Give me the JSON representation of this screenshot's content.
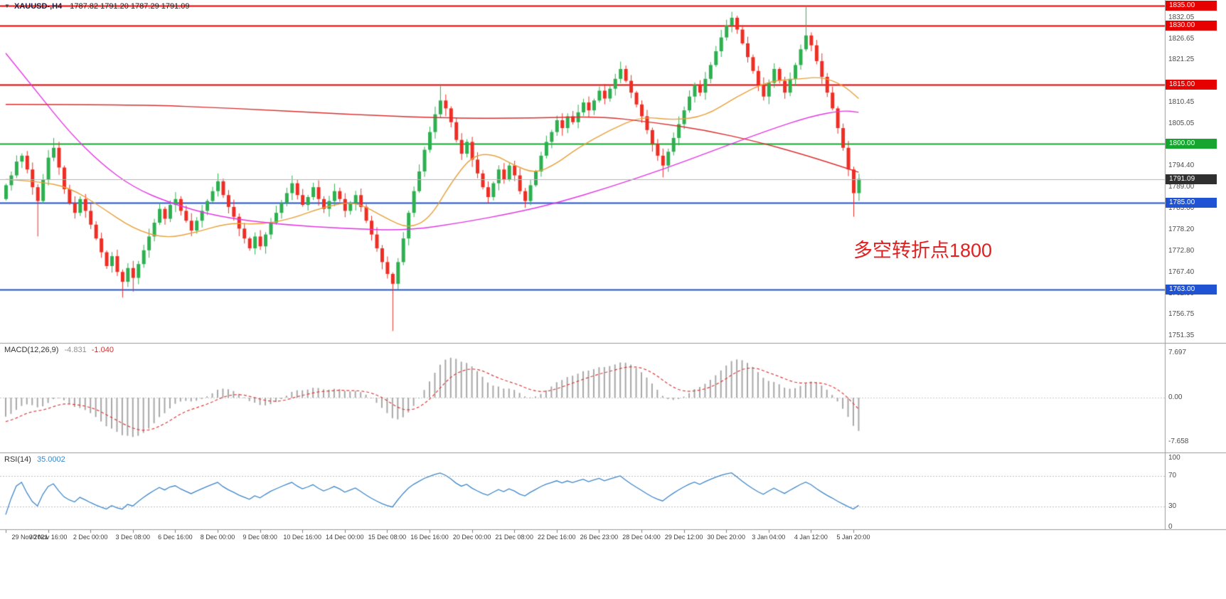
{
  "header": {
    "symbol_period": "XAUUSD-,H4",
    "ohlc": "1787.82 1791.20 1787.29 1791.09"
  },
  "annotation": {
    "text": "多空转折点1800",
    "color": "#e32020"
  },
  "colors": {
    "background": "#ffffff",
    "candle_up": "#2eb050",
    "candle_down": "#ee2e24",
    "separator": "#9a9a9a",
    "axis_text": "#4d4d4d"
  },
  "chart_data": {
    "type": "candlestick",
    "symbol": "XAUUSD-",
    "timeframe": "H4",
    "y_range": [
      1749.5,
      1836.5
    ],
    "bars_visible": 162,
    "candles": {
      "first_open": 1786.0,
      "closes": [
        1789.5,
        1792.0,
        1795.5,
        1797.0,
        1793.5,
        1789.0,
        1785.5,
        1791.0,
        1796.5,
        1799.0,
        1794.0,
        1788.5,
        1785.0,
        1782.5,
        1786.0,
        1783.0,
        1779.5,
        1776.0,
        1772.5,
        1769.0,
        1771.5,
        1767.5,
        1765.0,
        1768.5,
        1766.0,
        1769.5,
        1773.0,
        1776.5,
        1780.0,
        1783.5,
        1781.0,
        1784.5,
        1786.0,
        1783.0,
        1780.5,
        1778.0,
        1780.5,
        1783.0,
        1785.5,
        1788.0,
        1790.5,
        1787.0,
        1784.0,
        1781.5,
        1778.5,
        1776.0,
        1773.5,
        1776.5,
        1774.0,
        1777.0,
        1780.0,
        1782.5,
        1785.0,
        1787.5,
        1790.0,
        1787.0,
        1784.5,
        1786.5,
        1789.0,
        1786.0,
        1783.5,
        1785.5,
        1788.0,
        1786.0,
        1783.0,
        1785.0,
        1787.0,
        1784.0,
        1780.5,
        1777.0,
        1773.5,
        1770.0,
        1767.0,
        1764.5,
        1770.0,
        1776.0,
        1782.5,
        1788.0,
        1793.0,
        1798.5,
        1803.0,
        1807.5,
        1811.0,
        1809.0,
        1805.5,
        1801.0,
        1797.5,
        1800.5,
        1796.0,
        1792.5,
        1789.0,
        1786.5,
        1790.0,
        1793.5,
        1791.0,
        1794.5,
        1792.0,
        1788.0,
        1785.5,
        1789.5,
        1793.0,
        1797.0,
        1800.5,
        1803.0,
        1806.0,
        1804.0,
        1807.0,
        1805.5,
        1808.0,
        1810.5,
        1808.5,
        1811.0,
        1813.5,
        1811.5,
        1814.0,
        1816.5,
        1819.0,
        1816.0,
        1813.0,
        1810.0,
        1807.0,
        1803.5,
        1800.0,
        1797.0,
        1794.5,
        1798.0,
        1801.5,
        1805.0,
        1808.5,
        1812.0,
        1815.0,
        1813.0,
        1816.5,
        1820.0,
        1823.5,
        1827.0,
        1830.0,
        1832.0,
        1829.0,
        1825.5,
        1822.0,
        1818.5,
        1815.0,
        1812.0,
        1815.5,
        1819.0,
        1816.0,
        1813.0,
        1816.5,
        1820.0,
        1824.0,
        1827.5,
        1825.0,
        1821.0,
        1817.0,
        1813.0,
        1809.0,
        1804.0,
        1799.0,
        1793.5,
        1787.5,
        1791.1
      ],
      "wick_overrides": {
        "6": {
          "l": 1776.5
        },
        "9": {
          "h": 1801.5
        },
        "22": {
          "l": 1761.0
        },
        "24": {
          "l": 1762.5
        },
        "40": {
          "h": 1792.5
        },
        "73": {
          "l": 1752.5
        },
        "82": {
          "h": 1815.2
        },
        "124": {
          "l": 1791.5
        },
        "136": {
          "h": 1831.5
        },
        "137": {
          "h": 1833.5
        },
        "151": {
          "h": 1835.0
        },
        "160": {
          "l": 1781.5
        }
      }
    },
    "pre_closes": [
      1822,
      1820,
      1818,
      1816,
      1814,
      1812,
      1810,
      1808,
      1806,
      1804,
      1802,
      1800,
      1799,
      1798,
      1797,
      1796,
      1795,
      1794,
      1793,
      1792.5,
      1792,
      1791.5,
      1791,
      1790.8,
      1790.5,
      1790.3,
      1790,
      1789.8,
      1789.6,
      1789.4,
      1789.2,
      1789,
      1788.8,
      1788.6,
      1788.5,
      1788.4,
      1788.3,
      1788.2,
      1788.1,
      1788
    ],
    "moving_averages": [
      {
        "name": "ma-orange",
        "color": "#e9a13b",
        "points": [
          [
            0,
            1791
          ],
          [
            6,
            1790.5
          ],
          [
            12,
            1789
          ],
          [
            18,
            1784
          ],
          [
            24,
            1778.5
          ],
          [
            30,
            1776
          ],
          [
            36,
            1777.5
          ],
          [
            42,
            1780
          ],
          [
            48,
            1779.5
          ],
          [
            54,
            1781
          ],
          [
            60,
            1784
          ],
          [
            66,
            1785.5
          ],
          [
            72,
            1781
          ],
          [
            76,
            1778.5
          ],
          [
            80,
            1781
          ],
          [
            84,
            1790
          ],
          [
            88,
            1797
          ],
          [
            92,
            1797.5
          ],
          [
            96,
            1794.5
          ],
          [
            100,
            1792.5
          ],
          [
            104,
            1795
          ],
          [
            108,
            1799
          ],
          [
            114,
            1803.5
          ],
          [
            120,
            1807
          ],
          [
            126,
            1806
          ],
          [
            132,
            1807
          ],
          [
            138,
            1812
          ],
          [
            144,
            1816
          ],
          [
            150,
            1816.5
          ],
          [
            154,
            1817
          ],
          [
            158,
            1815
          ],
          [
            161,
            1811.5
          ]
        ]
      },
      {
        "name": "ma-magenta",
        "color": "#e437e4",
        "points": [
          [
            0,
            1823
          ],
          [
            6,
            1813
          ],
          [
            12,
            1803
          ],
          [
            18,
            1795
          ],
          [
            24,
            1789
          ],
          [
            31,
            1785
          ],
          [
            40,
            1781.5
          ],
          [
            52,
            1779.5
          ],
          [
            64,
            1778.5
          ],
          [
            76,
            1778
          ],
          [
            86,
            1780
          ],
          [
            96,
            1782.5
          ],
          [
            104,
            1785
          ],
          [
            114,
            1789
          ],
          [
            124,
            1793.5
          ],
          [
            134,
            1798.5
          ],
          [
            144,
            1803.5
          ],
          [
            152,
            1807
          ],
          [
            158,
            1808.5
          ],
          [
            161,
            1808
          ]
        ]
      },
      {
        "name": "ma-red",
        "color": "#d93030",
        "points": [
          [
            0,
            1810
          ],
          [
            24,
            1810
          ],
          [
            44,
            1809
          ],
          [
            64,
            1807.5
          ],
          [
            84,
            1806.5
          ],
          [
            100,
            1806.5
          ],
          [
            112,
            1807
          ],
          [
            122,
            1805.5
          ],
          [
            132,
            1803.5
          ],
          [
            142,
            1800.5
          ],
          [
            150,
            1797.5
          ],
          [
            156,
            1795
          ],
          [
            161,
            1792.8
          ]
        ]
      }
    ],
    "hlines": [
      {
        "value": 1835.0,
        "label": "1835.00",
        "color": "#e60000",
        "width": 2
      },
      {
        "value": 1830.0,
        "label": "1830.00",
        "color": "#e60000",
        "width": 2
      },
      {
        "value": 1815.0,
        "label": "1815.00",
        "color": "#e60000",
        "width": 2
      },
      {
        "value": 1800.0,
        "label": "1800.00",
        "color": "#16a52e",
        "width": 2
      },
      {
        "value": 1785.0,
        "label": "1785.00",
        "color": "#2053d4",
        "width": 2
      },
      {
        "value": 1763.0,
        "label": "1763.00",
        "color": "#2053d4",
        "width": 2
      }
    ],
    "current_price": {
      "value": 1791.09,
      "label": "1791.09",
      "line_color": "#b4b4b4",
      "tag_bg": "#2f2f2f"
    },
    "price_labels": [
      "1832.05",
      "1826.65",
      "1821.25",
      "1810.45",
      "1805.05",
      "1794.40",
      "1789.00",
      "1783.60",
      "1778.20",
      "1772.80",
      "1767.40",
      "1762.00",
      "1756.75",
      "1751.35"
    ],
    "macd": {
      "label": "MACD(12,26,9)",
      "value_main": "-4.831",
      "value_signal": "-1.040",
      "fast": 12,
      "slow": 26,
      "signal": 9,
      "hist_color": "#a8a8a8",
      "signal_color": "#e03a3a",
      "axis_labels": [
        "7.697",
        "0.00",
        "-7.658"
      ]
    },
    "rsi": {
      "label": "RSI(14)",
      "value_text": "35.0002",
      "period": 14,
      "color": "#3f87c9",
      "levels": [
        70,
        30
      ],
      "axis_labels": [
        "100",
        "70",
        "30",
        "0"
      ]
    },
    "time_labels": [
      "29 Nov 2021",
      "30 Nov 16:00",
      "2 Dec 00:00",
      "3 Dec 08:00",
      "6 Dec 16:00",
      "8 Dec 00:00",
      "9 Dec 08:00",
      "10 Dec 16:00",
      "14 Dec 00:00",
      "15 Dec 08:00",
      "16 Dec 16:00",
      "20 Dec 00:00",
      "21 Dec 08:00",
      "22 Dec 16:00",
      "26 Dec 23:00",
      "28 Dec 04:00",
      "29 Dec 12:00",
      "30 Dec 20:00",
      "3 Jan 04:00",
      "4 Jan 12:00",
      "5 Jan 20:00"
    ]
  }
}
